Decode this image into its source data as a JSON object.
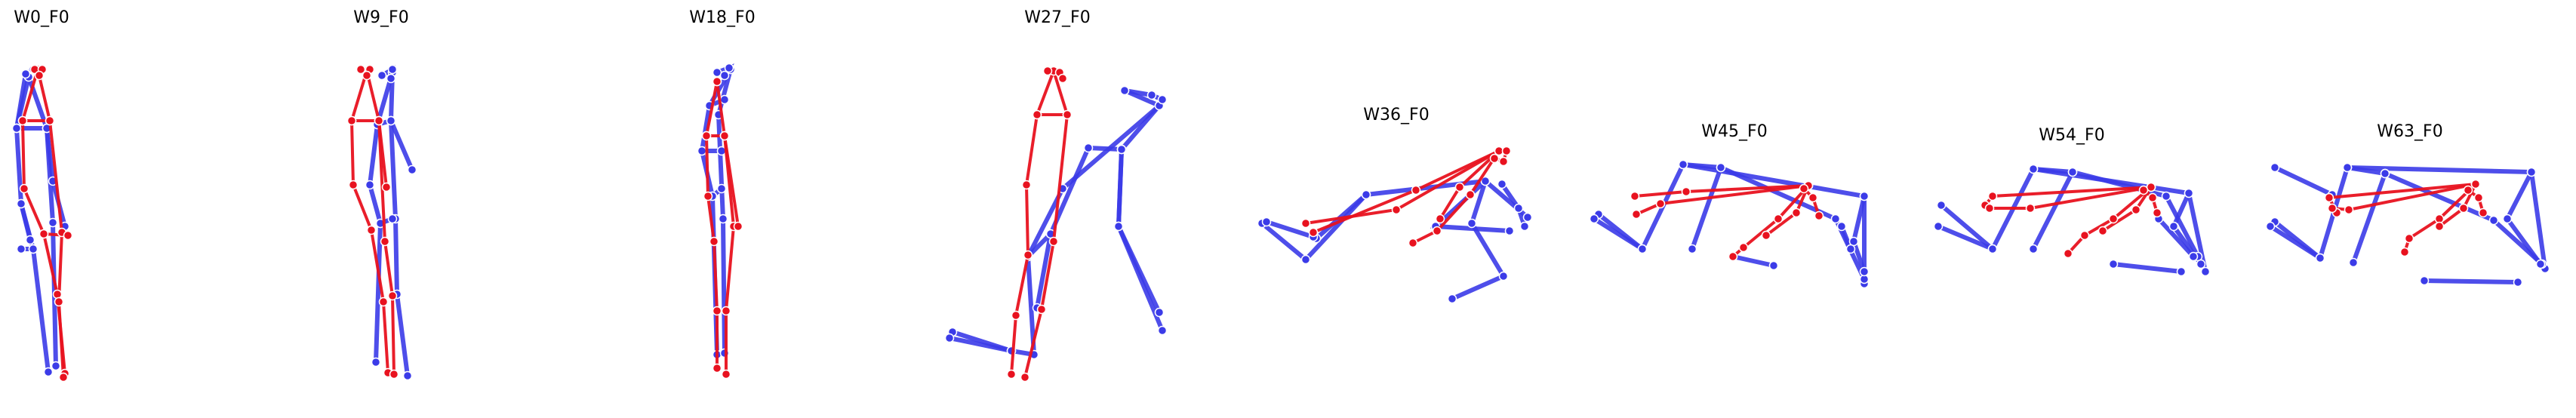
{
  "colors": {
    "blue": "#3b3be8",
    "red": "#e8121f",
    "background": "#ffffff"
  },
  "panels": [
    {
      "title": "W0_F0"
    },
    {
      "title": "W9_F0"
    },
    {
      "title": "W18_F0"
    },
    {
      "title": "W27_F0"
    },
    {
      "title": "W36_F0"
    },
    {
      "title": "W45_F0"
    },
    {
      "title": "W54_F0"
    },
    {
      "title": "W63_F0"
    }
  ]
}
